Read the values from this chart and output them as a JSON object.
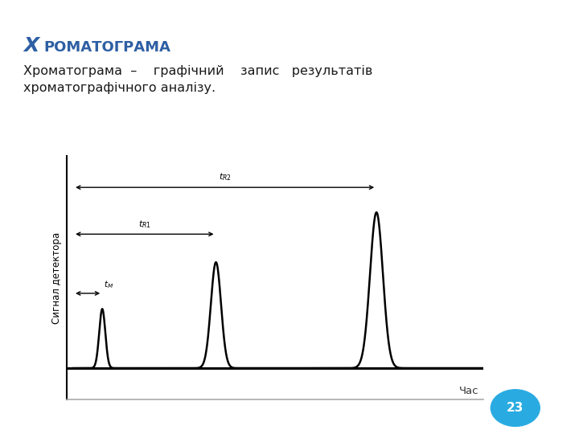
{
  "title": "Хроматограма",
  "title_color": "#2E5FA3",
  "body_line1": "Хроматограма  –    графічний    запис   результатів",
  "body_line2": "хроматографічного аналізу.",
  "bg_color": "#f0f5fb",
  "main_bg": "#ffffff",
  "ylabel": "Сигнал детектора",
  "xlabel": "Час",
  "page_number": "23",
  "page_circle_color": "#29ABE2",
  "left_strip_color": "#c8ddf2",
  "right_strip_color": "#c8ddf2"
}
